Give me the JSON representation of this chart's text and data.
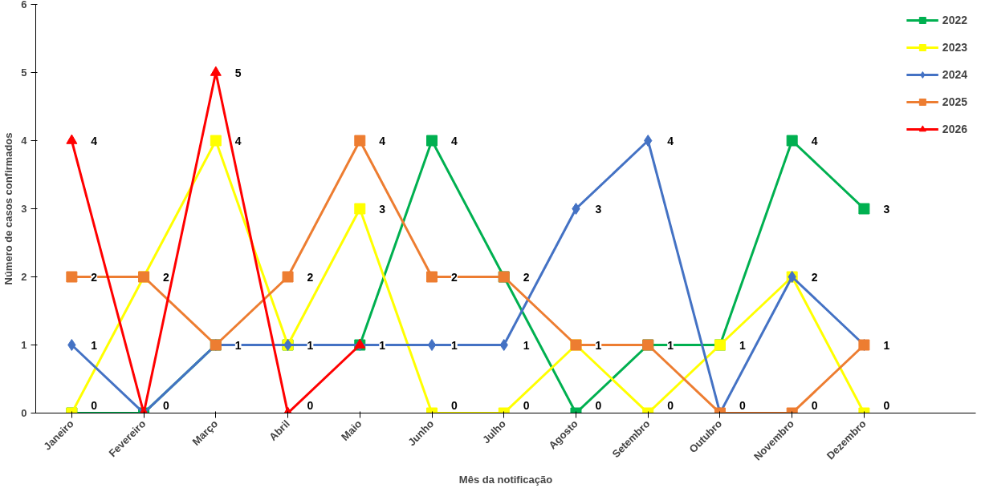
{
  "chart_data": {
    "type": "line",
    "xlabel": "Mês da notificação",
    "ylabel": "Número de casos confirmados",
    "categories": [
      "Janeiro",
      "Fevereiro",
      "Março",
      "Abril",
      "Maio",
      "Junho",
      "Julho",
      "Agosto",
      "Setembro",
      "Outubro",
      "Novembro",
      "Dezembro"
    ],
    "ylim": [
      0,
      6
    ],
    "yticks": [
      0,
      1,
      2,
      3,
      4,
      5,
      6
    ],
    "grid": false,
    "legend": "top right",
    "series": [
      {
        "name": "2022",
        "color": "#00b050",
        "marker": "square",
        "values": [
          0,
          0,
          1,
          1,
          1,
          4,
          2,
          0,
          1,
          1,
          4,
          3
        ],
        "value_labels": [
          "0",
          "0",
          "1",
          "1",
          "1",
          "4",
          "2",
          "0",
          "1",
          "1",
          "4",
          "3"
        ]
      },
      {
        "name": "2023",
        "color": "#ffff00",
        "marker": "square",
        "values": [
          0,
          2,
          4,
          1,
          3,
          0,
          0,
          1,
          0,
          1,
          2,
          0
        ],
        "value_labels": [
          null,
          "2",
          "4",
          null,
          "3",
          "0",
          "0",
          "1",
          "0",
          null,
          "2",
          "0"
        ]
      },
      {
        "name": "2024",
        "color": "#4472c4",
        "marker": "diamond",
        "values": [
          1,
          0,
          1,
          1,
          1,
          1,
          1,
          3,
          4,
          0,
          2,
          1
        ],
        "value_labels": [
          "1",
          null,
          null,
          null,
          null,
          "1",
          "1",
          "3",
          "4",
          "0",
          null,
          "1"
        ]
      },
      {
        "name": "2025",
        "color": "#ed7d31",
        "marker": "square",
        "values": [
          2,
          2,
          1,
          2,
          4,
          2,
          2,
          1,
          1,
          0,
          0,
          1
        ],
        "value_labels": [
          "2",
          null,
          null,
          "2",
          "4",
          "2",
          null,
          null,
          null,
          null,
          "0",
          null
        ]
      },
      {
        "name": "2026",
        "color": "#ff0000",
        "marker": "triangle",
        "values": [
          4,
          0,
          5,
          0,
          1,
          null,
          null,
          null,
          null,
          null,
          null,
          null
        ],
        "value_labels": [
          "4",
          null,
          "5",
          "0",
          null,
          null,
          null,
          null,
          null,
          null,
          null,
          null
        ]
      }
    ]
  }
}
